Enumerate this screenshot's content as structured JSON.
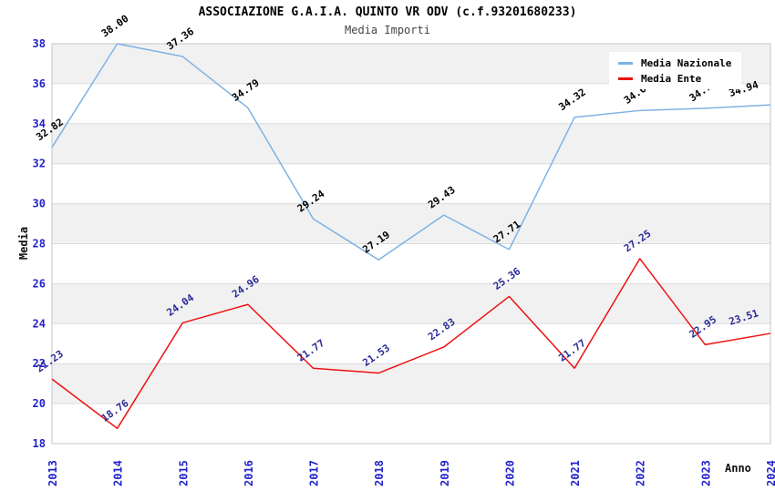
{
  "title": "ASSOCIAZIONE G.A.I.A. QUINTO VR ODV (c.f.93201680233)",
  "subtitle": "Media Importi",
  "chart_data": {
    "type": "line",
    "title": "ASSOCIAZIONE G.A.I.A. QUINTO VR ODV (c.f.93201680233)",
    "subtitle": "Media Importi",
    "xlabel": "Anno",
    "ylabel": "Media",
    "ylim": [
      18,
      38
    ],
    "ytick_step": 2,
    "grid": "horizontal-bands",
    "legend_position": "top-right",
    "axis_text_color": "#2222CC",
    "band_color": "#F1F1F1",
    "grid_color": "#DCDCDC",
    "frame_color": "#C6C6C6",
    "categories": [
      "2013",
      "2014",
      "2015",
      "2016",
      "2017",
      "2018",
      "2019",
      "2020",
      "2021",
      "2022",
      "2023",
      "2024"
    ],
    "series": [
      {
        "name": "Media Nazionale",
        "color": "#7EB2E4",
        "label_color": "#000000",
        "values": [
          32.82,
          38.0,
          37.36,
          34.79,
          29.24,
          27.19,
          29.43,
          27.71,
          34.32,
          34.66,
          34.77,
          34.94
        ]
      },
      {
        "name": "Media Ente",
        "color": "#EE1111",
        "label_color": "#2A2A99",
        "values": [
          21.23,
          18.76,
          24.04,
          24.96,
          21.77,
          21.53,
          22.83,
          25.36,
          21.77,
          27.25,
          22.95,
          23.51
        ]
      }
    ]
  }
}
